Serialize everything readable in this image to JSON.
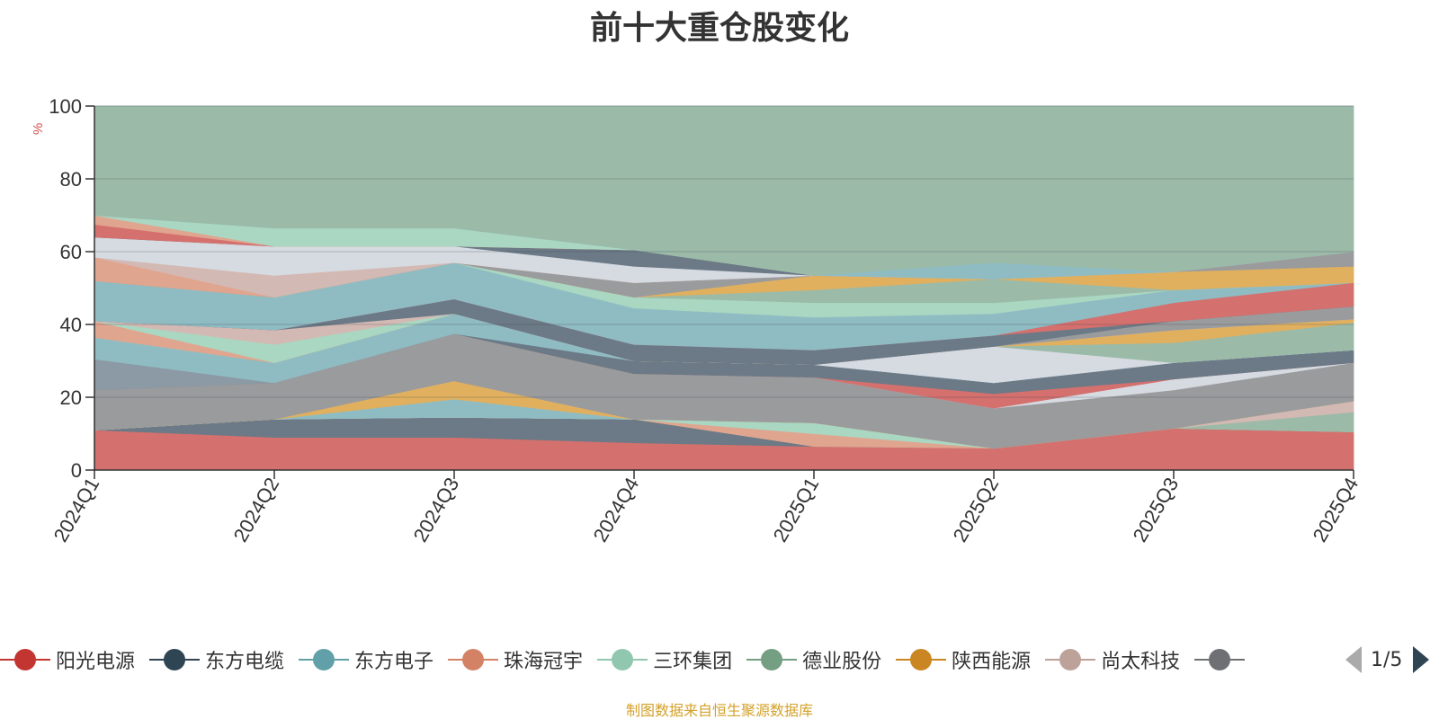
{
  "header": {
    "title": "前十大重仓股变化"
  },
  "chart_data": {
    "type": "area",
    "title": "前十大重仓股变化",
    "ylabel": "%",
    "xlabel": "",
    "ylim": [
      0,
      100
    ],
    "yticks": [
      0,
      20,
      40,
      60,
      80,
      100
    ],
    "grid": true,
    "legend_position": "bottom",
    "categories": [
      "2024Q1",
      "2024Q2",
      "2024Q3",
      "2024Q4",
      "2025Q1",
      "2025Q2",
      "2025Q3",
      "2025Q4"
    ],
    "bands": [
      {
        "color": "#d4706e",
        "lower": [
          0,
          0,
          0,
          0,
          0,
          0,
          0,
          0
        ],
        "upper": [
          11,
          9,
          9,
          7.5,
          6.5,
          6,
          11.5,
          10.5
        ]
      },
      {
        "color": "#6b7a86",
        "lower": [
          11,
          9,
          9,
          7.5,
          6.5,
          6,
          11.5,
          10.5
        ],
        "upper": [
          11,
          14,
          14.5,
          14,
          6.5,
          6,
          11.5,
          10.5
        ]
      },
      {
        "color": "#e0a58f",
        "lower": [
          11,
          14,
          14.5,
          14,
          6.5,
          6,
          11.5,
          10.5
        ],
        "upper": [
          11,
          14,
          14.5,
          14,
          10,
          6,
          11.5,
          10.5
        ]
      },
      {
        "color": "#a9d7c2",
        "lower": [
          11,
          14,
          14.5,
          14,
          10,
          6,
          11.5,
          10.5
        ],
        "upper": [
          11,
          14,
          14.5,
          14,
          13,
          6,
          11.5,
          10.5
        ]
      },
      {
        "color": "#9bbaa8",
        "lower": [
          11,
          14,
          14.5,
          14,
          13,
          6,
          11.5,
          10.5
        ],
        "upper": [
          11,
          14,
          14.5,
          14,
          13,
          6,
          11.5,
          16
        ]
      },
      {
        "color": "#d3b9b3",
        "lower": [
          11,
          14,
          14.5,
          14,
          13,
          6,
          11.5,
          16
        ],
        "upper": [
          11,
          14,
          14.5,
          14,
          13,
          6,
          11.5,
          19
        ]
      },
      {
        "color": "#8fbcc3",
        "lower": [
          11,
          14,
          14.5,
          14,
          13,
          6,
          11.5,
          19
        ],
        "upper": [
          11,
          14,
          19.5,
          14,
          13,
          6,
          11.5,
          19
        ]
      },
      {
        "color": "#e0b05f",
        "lower": [
          11,
          14,
          19.5,
          14,
          13,
          6,
          11.5,
          19
        ],
        "upper": [
          11,
          14,
          24.5,
          14,
          13,
          6,
          11.5,
          19
        ]
      },
      {
        "color": "#9a9b9d",
        "lower": [
          11,
          14,
          24.5,
          14,
          13,
          6,
          11.5,
          19
        ],
        "upper": [
          22,
          24,
          37.5,
          26.5,
          25.5,
          17,
          22,
          29.5
        ]
      },
      {
        "color": "#d6dae1",
        "lower": [
          22,
          24,
          37.5,
          26.5,
          25.5,
          17,
          22,
          29.5
        ],
        "upper": [
          22,
          24,
          37.5,
          26.5,
          25.5,
          17,
          25,
          29.5
        ]
      },
      {
        "color": "#d4706e",
        "lower": [
          22,
          24,
          37.5,
          26.5,
          25.5,
          17,
          25,
          29.5
        ],
        "upper": [
          22,
          24,
          37.5,
          26.5,
          25.5,
          21,
          25,
          29.5
        ]
      },
      {
        "color": "#6b7a86",
        "lower": [
          22,
          24,
          37.5,
          26.5,
          25.5,
          21,
          25,
          29.5
        ],
        "upper": [
          22,
          24,
          37.5,
          30,
          29,
          24,
          29.5,
          33
        ]
      },
      {
        "color": "#8b9aa5",
        "lower": [
          22,
          24,
          37.5,
          30,
          29,
          24,
          29.5,
          33
        ],
        "upper": [
          30.5,
          24,
          37.5,
          30,
          29,
          24,
          29.5,
          33
        ]
      },
      {
        "color": "#8fbcc3",
        "lower": [
          30.5,
          24,
          37.5,
          30,
          29,
          24,
          29.5,
          33
        ],
        "upper": [
          36.5,
          29.5,
          43,
          30,
          29,
          24,
          29.5,
          33
        ]
      },
      {
        "color": "#d6dae1",
        "lower": [
          36.5,
          29.5,
          43,
          30,
          29,
          24,
          29.5,
          33
        ],
        "upper": [
          36.5,
          29.5,
          43,
          30,
          29,
          34,
          29.5,
          33
        ]
      },
      {
        "color": "#9bbaa8",
        "lower": [
          36.5,
          29.5,
          43,
          30,
          29,
          34,
          29.5,
          33
        ],
        "upper": [
          36.5,
          29.5,
          43,
          30,
          29,
          34,
          35,
          40.5
        ]
      },
      {
        "color": "#e0b05f",
        "lower": [
          36.5,
          29.5,
          43,
          30,
          29,
          34,
          35,
          40.5
        ],
        "upper": [
          36.5,
          29.5,
          43,
          30,
          29,
          34,
          38.5,
          41.5
        ]
      },
      {
        "color": "#e0a58f",
        "lower": [
          36.5,
          29.5,
          43,
          30,
          29,
          34,
          38.5,
          41.5
        ],
        "upper": [
          41,
          29.5,
          43,
          30,
          29,
          34,
          38.5,
          41.5
        ]
      },
      {
        "color": "#a9d7c2",
        "lower": [
          41,
          29.5,
          43,
          30,
          29,
          34,
          38.5,
          41.5
        ],
        "upper": [
          41,
          34.5,
          43,
          30,
          29,
          34,
          38.5,
          41.5
        ]
      },
      {
        "color": "#d3b9b3",
        "lower": [
          41,
          34.5,
          43,
          30,
          29,
          34,
          38.5,
          41.5
        ],
        "upper": [
          41,
          38.5,
          43,
          30,
          29,
          34,
          38.5,
          41.5
        ]
      },
      {
        "color": "#9a9b9d",
        "lower": [
          41,
          38.5,
          43,
          30,
          29,
          34,
          38.5,
          41.5
        ],
        "upper": [
          41,
          38.5,
          43,
          30,
          29,
          34,
          41,
          45
        ]
      },
      {
        "color": "#6b7a86",
        "lower": [
          41,
          38.5,
          43,
          30,
          29,
          34,
          41,
          45
        ],
        "upper": [
          41,
          38.5,
          47,
          34.5,
          33,
          37,
          41,
          45
        ]
      },
      {
        "color": "#d4706e",
        "lower": [
          41,
          38.5,
          47,
          34.5,
          33,
          37,
          41,
          45
        ],
        "upper": [
          41,
          38.5,
          47,
          34.5,
          33,
          37,
          46,
          51.5
        ]
      },
      {
        "color": "#8fbcc3",
        "lower": [
          41,
          38.5,
          47,
          34.5,
          33,
          37,
          46,
          51.5
        ],
        "upper": [
          52,
          47.5,
          57,
          44.5,
          42,
          43,
          49.5,
          51.5
        ]
      },
      {
        "color": "#a9d7c2",
        "lower": [
          52,
          47.5,
          57,
          44.5,
          42,
          43,
          49.5,
          51.5
        ],
        "upper": [
          52,
          47.5,
          57,
          47.5,
          46,
          46,
          49.5,
          51.5
        ]
      },
      {
        "color": "#9bbaa8",
        "lower": [
          52,
          47.5,
          57,
          47.5,
          46,
          46,
          49.5,
          51.5
        ],
        "upper": [
          52,
          47.5,
          57,
          47.5,
          49.5,
          52.5,
          49.5,
          51.5
        ]
      },
      {
        "color": "#e0b05f",
        "lower": [
          52,
          47.5,
          57,
          47.5,
          49.5,
          52.5,
          49.5,
          51.5
        ],
        "upper": [
          52,
          47.5,
          57,
          47.5,
          53.5,
          52.5,
          54.5,
          56
        ]
      },
      {
        "color": "#9a9b9d",
        "lower": [
          52,
          47.5,
          57,
          47.5,
          53.5,
          52.5,
          54.5,
          56
        ],
        "upper": [
          52,
          47.5,
          57,
          51.5,
          53.5,
          52.5,
          54.5,
          60
        ]
      },
      {
        "color": "#e0a58f",
        "lower": [
          52,
          47.5,
          57,
          51.5,
          53.5,
          52.5,
          54.5,
          60
        ],
        "upper": [
          58.5,
          47.5,
          57,
          51.5,
          53.5,
          52.5,
          54.5,
          60
        ]
      },
      {
        "color": "#d3b9b3",
        "lower": [
          58.5,
          47.5,
          57,
          51.5,
          53.5,
          52.5,
          54.5,
          60
        ],
        "upper": [
          58.5,
          53.5,
          57,
          51.5,
          53.5,
          52.5,
          54.5,
          60
        ]
      },
      {
        "color": "#d6dae1",
        "lower": [
          58.5,
          53.5,
          57,
          51.5,
          53.5,
          52.5,
          54.5,
          60
        ],
        "upper": [
          64,
          61.5,
          61.5,
          56,
          53.5,
          52.5,
          54.5,
          60
        ]
      },
      {
        "color": "#6b7a86",
        "lower": [
          64,
          61.5,
          61.5,
          56,
          53.5,
          52.5,
          54.5,
          60
        ],
        "upper": [
          64,
          61.5,
          61.5,
          60.5,
          53.5,
          52.5,
          54.5,
          60
        ]
      },
      {
        "color": "#d4706e",
        "lower": [
          64,
          61.5,
          61.5,
          60.5,
          53.5,
          52.5,
          54.5,
          60
        ],
        "upper": [
          67.5,
          61.5,
          61.5,
          60.5,
          53.5,
          52.5,
          54.5,
          60
        ]
      },
      {
        "color": "#e0a58f",
        "lower": [
          67.5,
          61.5,
          61.5,
          60.5,
          53.5,
          52.5,
          54.5,
          60
        ],
        "upper": [
          70,
          61.5,
          61.5,
          60.5,
          53.5,
          52.5,
          54.5,
          60
        ]
      },
      {
        "color": "#a9d7c2",
        "lower": [
          70,
          61.5,
          61.5,
          60.5,
          53.5,
          52.5,
          54.5,
          60
        ],
        "upper": [
          70,
          66.5,
          66.5,
          60.5,
          53.5,
          52.5,
          54.5,
          60
        ]
      },
      {
        "color": "#8fbcc3",
        "lower": [
          70,
          66.5,
          66.5,
          60.5,
          53.5,
          52.5,
          54.5,
          60
        ],
        "upper": [
          70,
          66.5,
          66.5,
          60.5,
          53.5,
          57,
          54.5,
          60
        ]
      },
      {
        "color": "#9bbaa8",
        "lower": [
          70,
          66.5,
          66.5,
          60.5,
          53.5,
          57,
          54.5,
          60
        ],
        "upper": [
          100,
          100,
          100,
          100,
          100,
          100,
          100,
          100
        ]
      }
    ],
    "legend": [
      {
        "name": "阳光电源",
        "color": "#c23531"
      },
      {
        "name": "东方电缆",
        "color": "#2f4554"
      },
      {
        "name": "东方电子",
        "color": "#61a0a8"
      },
      {
        "name": "珠海冠宇",
        "color": "#d48265"
      },
      {
        "name": "三环集团",
        "color": "#91c7ae"
      },
      {
        "name": "德业股份",
        "color": "#749f83"
      },
      {
        "name": "陕西能源",
        "color": "#ca8622"
      },
      {
        "name": "尚太科技",
        "color": "#bda29a"
      },
      {
        "name": "",
        "color": "#6e7074"
      }
    ]
  },
  "legend_pager": {
    "text": "1/5"
  },
  "footer": {
    "source": "制图数据来自恒生聚源数据库"
  }
}
